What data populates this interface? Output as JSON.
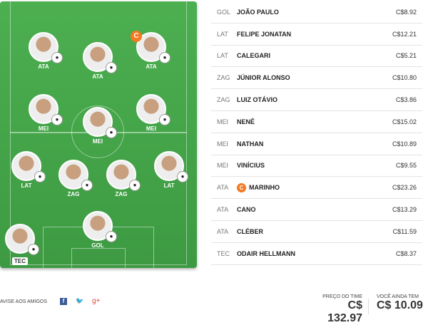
{
  "pitch": {
    "players": [
      {
        "pos": "ATA",
        "badge": "●"
      },
      {
        "pos": "ATA",
        "badge": "●"
      },
      {
        "pos": "ATA",
        "badge": "●"
      },
      {
        "pos": "MEI",
        "badge": "●"
      },
      {
        "pos": "MEI",
        "badge": "●"
      },
      {
        "pos": "MEI",
        "badge": "●"
      },
      {
        "pos": "LAT",
        "badge": "●"
      },
      {
        "pos": "ZAG",
        "badge": "●"
      },
      {
        "pos": "ZAG",
        "badge": "●"
      },
      {
        "pos": "LAT",
        "badge": "●"
      },
      {
        "pos": "GOL",
        "badge": "●"
      },
      {
        "pos": "TEC",
        "badge": "●"
      }
    ],
    "captain_label": "C"
  },
  "list": [
    {
      "pos": "GOL",
      "name": "JOÃO PAULO",
      "price": "C$8.92"
    },
    {
      "pos": "LAT",
      "name": "FELIPE JONATAN",
      "price": "C$12.21"
    },
    {
      "pos": "LAT",
      "name": "CALEGARI",
      "price": "C$5.21"
    },
    {
      "pos": "ZAG",
      "name": "JÚNIOR ALONSO",
      "price": "C$10.80"
    },
    {
      "pos": "ZAG",
      "name": "LUIZ OTÁVIO",
      "price": "C$3.86"
    },
    {
      "pos": "MEI",
      "name": "NENÊ",
      "price": "C$15.02"
    },
    {
      "pos": "MEI",
      "name": "NATHAN",
      "price": "C$10.89"
    },
    {
      "pos": "MEI",
      "name": "VINÍCIUS",
      "price": "C$9.55"
    },
    {
      "pos": "ATA",
      "name": "MARINHO",
      "price": "C$23.26",
      "captain": "C"
    },
    {
      "pos": "ATA",
      "name": "CANO",
      "price": "C$13.29"
    },
    {
      "pos": "ATA",
      "name": "CLÉBER",
      "price": "C$11.59"
    },
    {
      "pos": "TEC",
      "name": "ODAIR HELLMANN",
      "price": "C$8.37"
    }
  ],
  "footer": {
    "share": "AVISE AOS AMIGOS",
    "fb": "f",
    "tw": "🐦",
    "gp": "g+",
    "team_price_label": "PREÇO DO TIME",
    "team_price": "C$ 132.97",
    "remaining_label": "VOCÊ AINDA TEM",
    "remaining": "C$ 10.09"
  },
  "colors": {
    "captain": "#f47920",
    "pitch": "#4caf50"
  }
}
